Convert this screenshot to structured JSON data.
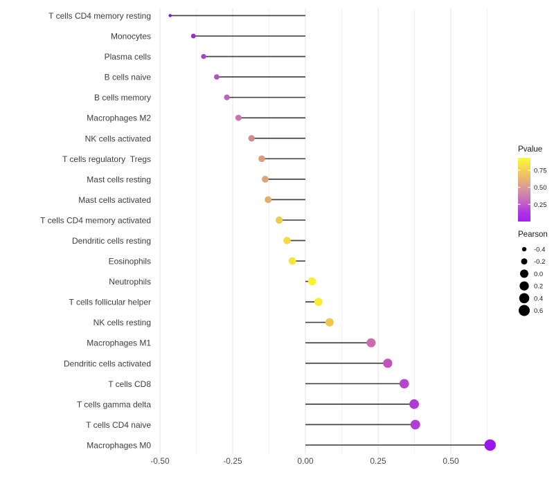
{
  "figure": {
    "background": "#ffffff"
  },
  "chart_data": {
    "type": "scatter",
    "variant": "horizontal-lollipop",
    "title": "",
    "xlabel": "",
    "ylabel": "",
    "grid": "vertical major and minor, no axis lines",
    "xlim": [
      -0.521,
      0.648
    ],
    "x_tick_values": [
      -0.5,
      -0.25,
      0,
      0.25,
      0.5
    ],
    "x_tick_labels": [
      "-0.50",
      "-0.25",
      "0.00",
      "0.25",
      "0.50"
    ],
    "stem_color": "#454545",
    "points": [
      {
        "label": "T cells CD4 memory resting",
        "pearson": -0.465,
        "color": "#8318C8",
        "diameter": 4.5
      },
      {
        "label": "Monocytes",
        "pearson": -0.385,
        "color": "#9A2EC9",
        "diameter": 6.8
      },
      {
        "label": "Plasma cells",
        "pearson": -0.35,
        "color": "#A743C7",
        "diameter": 7.3
      },
      {
        "label": "B cells naive",
        "pearson": -0.305,
        "color": "#B254BF",
        "diameter": 7.8
      },
      {
        "label": "B cells memory",
        "pearson": -0.27,
        "color": "#BB64B9",
        "diameter": 8.3
      },
      {
        "label": "Macrophages M2",
        "pearson": -0.23,
        "color": "#C578AE",
        "diameter": 9.0
      },
      {
        "label": "NK cells activated",
        "pearson": -0.185,
        "color": "#CE8B92",
        "diameter": 9.4
      },
      {
        "label": "T cells regulatory  Tregs",
        "pearson": -0.15,
        "color": "#DB9F7C",
        "diameter": 9.7
      },
      {
        "label": "Mast cells resting",
        "pearson": -0.138,
        "color": "#DFA476",
        "diameter": 9.8
      },
      {
        "label": "Mast cells activated",
        "pearson": -0.128,
        "color": "#E4AD6A",
        "diameter": 9.9
      },
      {
        "label": "T cells CD4 memory activated",
        "pearson": -0.09,
        "color": "#EFC950",
        "diameter": 10.3
      },
      {
        "label": "Dendritic cells resting",
        "pearson": -0.063,
        "color": "#F3D845",
        "diameter": 10.6
      },
      {
        "label": "Eosinophils",
        "pearson": -0.045,
        "color": "#F6E53B",
        "diameter": 10.8
      },
      {
        "label": "Neutrophils",
        "pearson": 0.023,
        "color": "#F8F22B",
        "diameter": 11.6
      },
      {
        "label": "T cells follicular helper",
        "pearson": 0.045,
        "color": "#F7ED32",
        "diameter": 11.8
      },
      {
        "label": "NK cells resting",
        "pearson": 0.083,
        "color": "#EEC751",
        "diameter": 12.0
      },
      {
        "label": "Macrophages M1",
        "pearson": 0.226,
        "color": "#CB6BA9",
        "diameter": 13.0
      },
      {
        "label": "Dendritic cells activated",
        "pearson": 0.283,
        "color": "#C353BC",
        "diameter": 13.3
      },
      {
        "label": "T cells CD8",
        "pearson": 0.34,
        "color": "#B545CD",
        "diameter": 13.7
      },
      {
        "label": "T cells gamma delta",
        "pearson": 0.374,
        "color": "#AF3BD5",
        "diameter": 13.9
      },
      {
        "label": "T cells CD4 naive",
        "pearson": 0.378,
        "color": "#B03DD4",
        "diameter": 13.9
      },
      {
        "label": "Macrophages M0",
        "pearson": 0.635,
        "color": "#9A16EA",
        "diameter": 16.5
      }
    ],
    "legend_pvalue": {
      "title": "Pvalue",
      "tick_labels": [
        "0.75",
        "0.50",
        "0.25"
      ],
      "tick_values": [
        0.75,
        0.5,
        0.25
      ],
      "bar_value_range": [
        0.0,
        0.93
      ],
      "gradient_top_to_bottom": [
        "#FBF83B",
        "#F6DC4E",
        "#EFBC6A",
        "#E0A18C",
        "#D084AC",
        "#C25FC9",
        "#AC34E2",
        "#A322EC"
      ],
      "position": "right"
    },
    "legend_pearson": {
      "title": "Pearson",
      "items": [
        {
          "label": "-0.4",
          "diameter": 6.5
        },
        {
          "label": "-0.2",
          "diameter": 9.0
        },
        {
          "label": "0.0",
          "diameter": 12.0
        },
        {
          "label": "0.2",
          "diameter": 13.3
        },
        {
          "label": "0.4",
          "diameter": 14.6
        },
        {
          "label": "0.6",
          "diameter": 16.0
        }
      ],
      "dot_color": "#000000",
      "position": "right"
    },
    "colors": {
      "grid_major": "#E3E3E3",
      "grid_minor": "#F0F0F0",
      "category_text": "#3D3D3D",
      "tick_text": "#4D4D4D",
      "legend_text": "#1A1A1A"
    }
  }
}
